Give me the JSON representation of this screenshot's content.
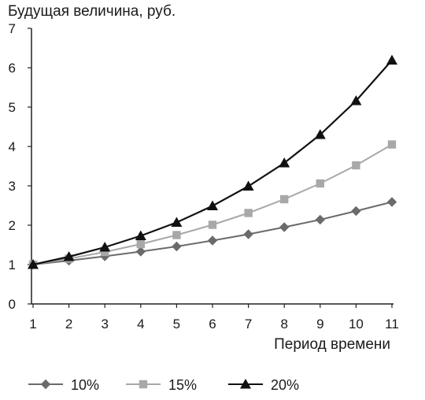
{
  "chart_data": {
    "type": "line",
    "title": "",
    "ylabel": "Будущая величина, руб.",
    "xlabel": "Период времени",
    "x": [
      1,
      2,
      3,
      4,
      5,
      6,
      7,
      8,
      9,
      10,
      11
    ],
    "ylim": [
      0,
      7
    ],
    "yticks": [
      0,
      1,
      2,
      3,
      4,
      5,
      6,
      7
    ],
    "grid": false,
    "legend": "bottom",
    "series": [
      {
        "name": "10%",
        "marker": "diamond",
        "color": "#6b6b6b",
        "values": [
          1.0,
          1.1,
          1.21,
          1.33,
          1.46,
          1.61,
          1.77,
          1.95,
          2.14,
          2.36,
          2.59
        ]
      },
      {
        "name": "15%",
        "marker": "square",
        "color": "#a8a8a8",
        "values": [
          1.0,
          1.15,
          1.32,
          1.52,
          1.75,
          2.01,
          2.31,
          2.66,
          3.06,
          3.52,
          4.05
        ]
      },
      {
        "name": "20%",
        "marker": "triangle",
        "color": "#111111",
        "values": [
          1.0,
          1.2,
          1.44,
          1.73,
          2.07,
          2.49,
          2.99,
          3.58,
          4.3,
          5.16,
          6.19
        ]
      }
    ]
  }
}
